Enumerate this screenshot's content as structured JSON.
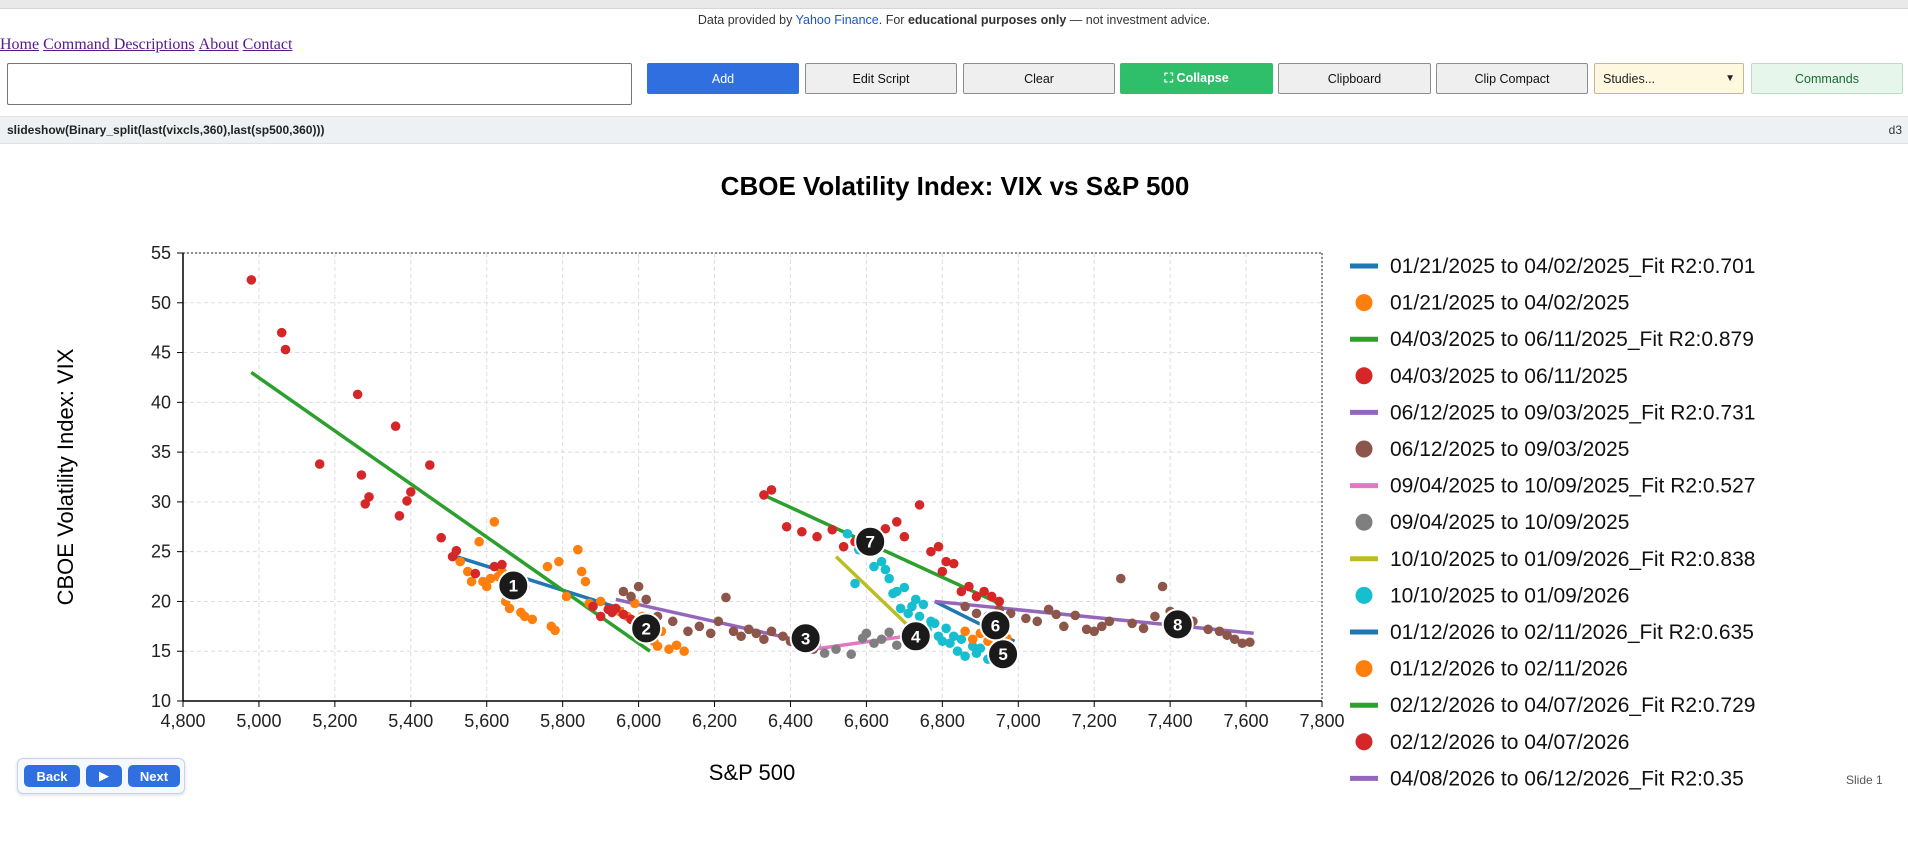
{
  "notice": {
    "prefix": "Data provided by ",
    "source": "Yahoo Finance",
    "middle": ". For ",
    "bold": "educational purposes only",
    "suffix": " — not investment advice."
  },
  "nav": [
    "Home",
    "Command Descriptions",
    "About",
    "Contact"
  ],
  "command_input": {
    "value": "",
    "placeholder": ""
  },
  "buttons": {
    "add": "Add",
    "edit_script": "Edit Script",
    "clear": "Clear",
    "collapse": "⛶ Collapse",
    "clipboard": "Clipboard",
    "clip_compact": "Clip Compact",
    "commands": "Commands"
  },
  "studies": {
    "selected": "Studies..."
  },
  "script_text": "slideshow(Binary_split(last(vixcls,360),last(sp500,360)))",
  "engine_label": "d3",
  "controls": {
    "back": "Back",
    "play": "▶",
    "next": "Next"
  },
  "slide_label": "Slide 1",
  "chart_data": {
    "type": "scatter",
    "title": "CBOE Volatility Index: VIX vs S&P 500",
    "xlabel": "S&P 500",
    "ylabel": "CBOE Volatility Index: VIX",
    "xlim": [
      4800,
      7800
    ],
    "ylim": [
      10,
      55
    ],
    "xticks": [
      4800,
      5000,
      5200,
      5400,
      5600,
      5800,
      6000,
      6200,
      6400,
      6600,
      6800,
      7000,
      7200,
      7400,
      7600,
      7800
    ],
    "yticks": [
      10,
      15,
      20,
      25,
      30,
      35,
      40,
      45,
      50,
      55
    ],
    "grid": true,
    "legend_position": "right",
    "legend": [
      {
        "label": "01/21/2025 to 04/02/2025_Fit R2:0.701",
        "kind": "line",
        "color": "#1f77b4"
      },
      {
        "label": "01/21/2025 to 04/02/2025",
        "kind": "dot",
        "color": "#ff7f0e"
      },
      {
        "label": "04/03/2025 to 06/11/2025_Fit R2:0.879",
        "kind": "line",
        "color": "#2ca02c"
      },
      {
        "label": "04/03/2025 to 06/11/2025",
        "kind": "dot",
        "color": "#d62728"
      },
      {
        "label": "06/12/2025 to 09/03/2025_Fit R2:0.731",
        "kind": "line",
        "color": "#9467bd"
      },
      {
        "label": "06/12/2025 to 09/03/2025",
        "kind": "dot",
        "color": "#8c564b"
      },
      {
        "label": "09/04/2025 to 10/09/2025_Fit R2:0.527",
        "kind": "line",
        "color": "#e377c2"
      },
      {
        "label": "09/04/2025 to 10/09/2025",
        "kind": "dot",
        "color": "#7f7f7f"
      },
      {
        "label": "10/10/2025 to 01/09/2026_Fit R2:0.838",
        "kind": "line",
        "color": "#bcbd22"
      },
      {
        "label": "10/10/2025 to 01/09/2026",
        "kind": "dot",
        "color": "#17becf"
      },
      {
        "label": "01/12/2026 to 02/11/2026_Fit R2:0.635",
        "kind": "line",
        "color": "#1f77b4"
      },
      {
        "label": "01/12/2026 to 02/11/2026",
        "kind": "dot",
        "color": "#ff7f0e"
      },
      {
        "label": "02/12/2026 to 04/07/2026_Fit R2:0.729",
        "kind": "line",
        "color": "#2ca02c"
      },
      {
        "label": "02/12/2026 to 04/07/2026",
        "kind": "dot",
        "color": "#d62728"
      },
      {
        "label": "04/08/2026 to 06/12/2026_Fit R2:0.35",
        "kind": "line",
        "color": "#9467bd"
      }
    ],
    "fits": [
      {
        "color": "#1f77b4",
        "from": [
          5520,
          24.5
        ],
        "to": [
          5960,
          19.2
        ]
      },
      {
        "color": "#2ca02c",
        "from": [
          4980,
          43
        ],
        "to": [
          6030,
          15
        ]
      },
      {
        "color": "#9467bd",
        "from": [
          5940,
          20.2
        ],
        "to": [
          6480,
          15.6
        ]
      },
      {
        "color": "#e377c2",
        "from": [
          6460,
          15.2
        ],
        "to": [
          6760,
          16.8
        ]
      },
      {
        "color": "#bcbd22",
        "from": [
          6520,
          24.5
        ],
        "to": [
          6720,
          17.2
        ]
      },
      {
        "color": "#1f77b4",
        "from": [
          6780,
          20
        ],
        "to": [
          6990,
          16
        ]
      },
      {
        "color": "#2ca02c",
        "from": [
          6340,
          30.5
        ],
        "to": [
          6950,
          19.8
        ]
      },
      {
        "color": "#9467bd",
        "from": [
          6780,
          20
        ],
        "to": [
          7620,
          16.8
        ]
      }
    ],
    "series": [
      {
        "color": "#ff7f0e",
        "points": [
          [
            5530,
            24
          ],
          [
            5550,
            23
          ],
          [
            5560,
            22
          ],
          [
            5580,
            26
          ],
          [
            5590,
            22
          ],
          [
            5600,
            21.5
          ],
          [
            5610,
            22.3
          ],
          [
            5620,
            28
          ],
          [
            5630,
            22.5
          ],
          [
            5640,
            23
          ],
          [
            5650,
            20
          ],
          [
            5660,
            19.3
          ],
          [
            5670,
            21
          ],
          [
            5680,
            20.5
          ],
          [
            5690,
            18.9
          ],
          [
            5700,
            18.5
          ],
          [
            5720,
            18.2
          ],
          [
            5760,
            23.5
          ],
          [
            5770,
            17.5
          ],
          [
            5780,
            17.1
          ],
          [
            5790,
            24
          ],
          [
            5810,
            20.5
          ],
          [
            5840,
            25.2
          ],
          [
            5850,
            23
          ],
          [
            5860,
            22
          ],
          [
            5870,
            19.8
          ],
          [
            5900,
            20
          ],
          [
            5950,
            19
          ],
          [
            5970,
            18.5
          ],
          [
            5990,
            19.8
          ],
          [
            6010,
            18.5
          ],
          [
            6020,
            17.5
          ],
          [
            6040,
            16
          ],
          [
            6050,
            15.5
          ],
          [
            6060,
            17
          ],
          [
            6080,
            15.2
          ],
          [
            6100,
            15.6
          ],
          [
            6120,
            15
          ]
        ]
      },
      {
        "color": "#d62728",
        "points": [
          [
            4980,
            52.3
          ],
          [
            5060,
            47
          ],
          [
            5070,
            45.3
          ],
          [
            5160,
            33.8
          ],
          [
            5260,
            40.8
          ],
          [
            5270,
            32.7
          ],
          [
            5280,
            29.8
          ],
          [
            5290,
            30.5
          ],
          [
            5360,
            37.6
          ],
          [
            5370,
            28.6
          ],
          [
            5390,
            30.1
          ],
          [
            5400,
            31
          ],
          [
            5450,
            33.7
          ],
          [
            5480,
            26.4
          ],
          [
            5510,
            24.5
          ],
          [
            5520,
            25.1
          ],
          [
            5570,
            22.8
          ],
          [
            5620,
            23.5
          ],
          [
            5640,
            23.7
          ],
          [
            5660,
            22.3
          ],
          [
            5700,
            21.5
          ],
          [
            5880,
            19.5
          ],
          [
            5900,
            18.5
          ],
          [
            5920,
            19.2
          ],
          [
            5930,
            18.9
          ],
          [
            5940,
            19.3
          ],
          [
            5960,
            18.7
          ],
          [
            5980,
            18.2
          ],
          [
            6000,
            17.5
          ]
        ]
      },
      {
        "color": "#8c564b",
        "points": [
          [
            5960,
            21
          ],
          [
            5980,
            20.5
          ],
          [
            6000,
            21.5
          ],
          [
            6020,
            20.2
          ],
          [
            6050,
            18.5
          ],
          [
            6090,
            18
          ],
          [
            6130,
            17
          ],
          [
            6160,
            17.5
          ],
          [
            6190,
            16.8
          ],
          [
            6210,
            18
          ],
          [
            6230,
            20.4
          ],
          [
            6250,
            17
          ],
          [
            6270,
            16.5
          ],
          [
            6290,
            17.2
          ],
          [
            6310,
            16.8
          ],
          [
            6330,
            16.2
          ],
          [
            6350,
            17
          ],
          [
            6380,
            16.5
          ],
          [
            6400,
            16
          ],
          [
            6420,
            15.8
          ],
          [
            6440,
            15.4
          ],
          [
            6460,
            15.2
          ],
          [
            6860,
            19.5
          ],
          [
            6890,
            18.8
          ],
          [
            6920,
            18.5
          ],
          [
            6950,
            19.2
          ],
          [
            6980,
            18.8
          ],
          [
            7020,
            18.3
          ],
          [
            7050,
            18
          ],
          [
            7080,
            19.2
          ],
          [
            7100,
            18.7
          ],
          [
            7120,
            17.5
          ],
          [
            7150,
            18.6
          ],
          [
            7180,
            17.2
          ],
          [
            7200,
            17
          ],
          [
            7220,
            17.5
          ],
          [
            7240,
            18
          ],
          [
            7270,
            22.3
          ],
          [
            7300,
            17.8
          ],
          [
            7330,
            17.3
          ],
          [
            7360,
            18.5
          ],
          [
            7380,
            21.5
          ],
          [
            7400,
            19
          ],
          [
            7420,
            17.5
          ],
          [
            7460,
            18
          ],
          [
            7500,
            17.2
          ],
          [
            7530,
            17
          ],
          [
            7550,
            16.6
          ],
          [
            7570,
            16.2
          ],
          [
            7590,
            15.8
          ],
          [
            7610,
            15.9
          ]
        ]
      },
      {
        "color": "#7f7f7f",
        "points": [
          [
            6460,
            15.4
          ],
          [
            6490,
            14.8
          ],
          [
            6520,
            15.2
          ],
          [
            6560,
            14.7
          ],
          [
            6590,
            16.3
          ],
          [
            6600,
            16.8
          ],
          [
            6620,
            15.8
          ],
          [
            6640,
            16.2
          ],
          [
            6660,
            16.9
          ],
          [
            6680,
            15.6
          ],
          [
            6700,
            16.5
          ],
          [
            6720,
            17
          ],
          [
            6740,
            16.2
          ],
          [
            6760,
            16.5
          ]
        ]
      },
      {
        "color": "#17becf",
        "points": [
          [
            6550,
            26.8
          ],
          [
            6570,
            21.8
          ],
          [
            6580,
            25.2
          ],
          [
            6620,
            23.5
          ],
          [
            6640,
            24
          ],
          [
            6650,
            23.2
          ],
          [
            6660,
            22.3
          ],
          [
            6670,
            20.8
          ],
          [
            6680,
            21
          ],
          [
            6690,
            19.3
          ],
          [
            6700,
            21.4
          ],
          [
            6710,
            18.8
          ],
          [
            6720,
            19.5
          ],
          [
            6730,
            20.2
          ],
          [
            6740,
            18.5
          ],
          [
            6750,
            19.7
          ],
          [
            6760,
            17.2
          ],
          [
            6770,
            18
          ],
          [
            6780,
            17.8
          ],
          [
            6790,
            16.5
          ],
          [
            6800,
            16
          ],
          [
            6810,
            17.3
          ],
          [
            6820,
            15.8
          ],
          [
            6830,
            16.5
          ],
          [
            6840,
            15
          ],
          [
            6850,
            16.2
          ],
          [
            6860,
            14.5
          ],
          [
            6880,
            15.5
          ],
          [
            6890,
            14.8
          ],
          [
            6900,
            15.3
          ],
          [
            6920,
            14.2
          ],
          [
            6940,
            15.5
          ],
          [
            6960,
            14.6
          ]
        ]
      },
      {
        "color": "#ff7f0e",
        "points": [
          [
            6860,
            17
          ],
          [
            6880,
            16.2
          ],
          [
            6900,
            16.8
          ],
          [
            6920,
            16
          ],
          [
            6940,
            16.5
          ],
          [
            6960,
            17.2
          ],
          [
            6970,
            16.3
          ]
        ]
      },
      {
        "color": "#d62728",
        "points": [
          [
            6330,
            30.7
          ],
          [
            6350,
            31.2
          ],
          [
            6390,
            27.5
          ],
          [
            6430,
            27
          ],
          [
            6470,
            26.5
          ],
          [
            6510,
            27.2
          ],
          [
            6540,
            25.5
          ],
          [
            6570,
            26
          ],
          [
            6610,
            25.5
          ],
          [
            6650,
            27.3
          ],
          [
            6680,
            28
          ],
          [
            6700,
            26.5
          ],
          [
            6740,
            29.7
          ],
          [
            6770,
            25
          ],
          [
            6790,
            25.5
          ],
          [
            6800,
            23
          ],
          [
            6810,
            24
          ],
          [
            6830,
            23.8
          ],
          [
            6850,
            21
          ],
          [
            6870,
            21.5
          ],
          [
            6890,
            20.5
          ],
          [
            6910,
            21
          ],
          [
            6930,
            20.5
          ],
          [
            6950,
            20
          ]
        ]
      }
    ],
    "markers": [
      {
        "label": "1",
        "x": 5670,
        "y": 21.6
      },
      {
        "label": "2",
        "x": 6020,
        "y": 17.3
      },
      {
        "label": "3",
        "x": 6440,
        "y": 16.3
      },
      {
        "label": "4",
        "x": 6730,
        "y": 16.5
      },
      {
        "label": "5",
        "x": 6960,
        "y": 14.7
      },
      {
        "label": "6",
        "x": 6940,
        "y": 17.6
      },
      {
        "label": "7",
        "x": 6610,
        "y": 26.0
      },
      {
        "label": "8",
        "x": 7420,
        "y": 17.7
      }
    ]
  }
}
